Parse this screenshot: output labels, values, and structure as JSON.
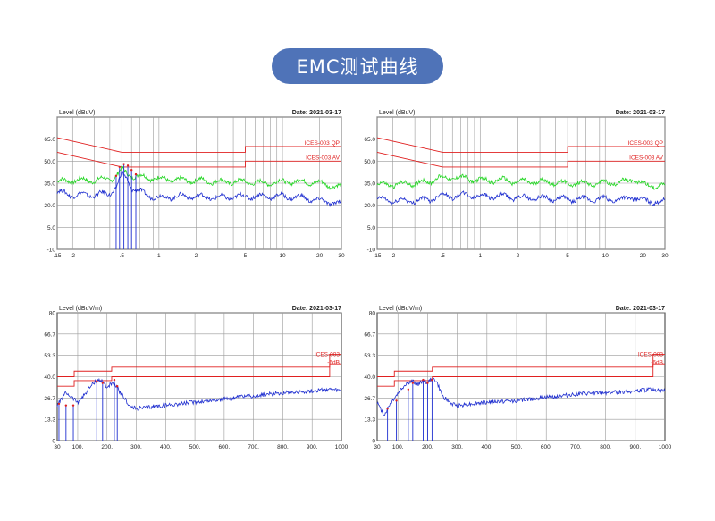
{
  "page": {
    "title": "EMC测试曲线"
  },
  "colors": {
    "limit": "#e02020",
    "qp_trace": "#23d623",
    "av_trace": "#1f2fd0",
    "header": "#4f73b8",
    "grid": "#9a9a9a"
  },
  "chart_data": [
    {
      "type": "line",
      "ylabel": "Level (dBuV)",
      "date": "Date: 2021-03-17",
      "xscale": "log",
      "xlim": [
        0.15,
        30
      ],
      "ylim": [
        -10,
        80
      ],
      "xticks": [
        0.15,
        0.2,
        0.5,
        1,
        2,
        5,
        10,
        20,
        30
      ],
      "xtick_labels": [
        ".15",
        ".2",
        ".5",
        "1",
        "2",
        "5",
        "10",
        "20",
        "30"
      ],
      "yticks": [
        -10,
        5,
        20,
        35,
        50,
        65,
        80
      ],
      "ytick_labels": [
        "-10",
        "5.0",
        "20.0",
        "35.0",
        "50.0",
        "65.0",
        ""
      ],
      "grid": true,
      "limit_labels": [
        "ICES-003 QP",
        "ICES-003 AV"
      ],
      "limits": [
        {
          "name": "ICES-003 QP",
          "x": [
            0.15,
            0.5,
            0.5,
            5,
            5,
            30
          ],
          "y": [
            66,
            56,
            56,
            56,
            60,
            60
          ]
        },
        {
          "name": "ICES-003 AV",
          "x": [
            0.15,
            0.5,
            0.5,
            5,
            5,
            30
          ],
          "y": [
            56,
            46,
            46,
            46,
            50,
            50
          ]
        }
      ],
      "series": [
        {
          "x": [
            0.15,
            0.2,
            0.3,
            0.4,
            0.45,
            0.5,
            0.55,
            0.6,
            0.8,
            1,
            1.5,
            2,
            3,
            5,
            7,
            10,
            15,
            20,
            30
          ],
          "y": [
            36,
            37,
            37,
            38,
            40,
            44,
            42,
            40,
            39,
            38,
            37,
            37,
            36,
            36,
            35,
            36,
            36,
            35,
            32
          ]
        },
        {
          "x": [
            0.15,
            0.2,
            0.3,
            0.4,
            0.45,
            0.5,
            0.55,
            0.6,
            0.8,
            1,
            1.5,
            2,
            3,
            5,
            7,
            10,
            15,
            20,
            30
          ],
          "y": [
            29,
            27,
            27,
            28,
            32,
            41,
            38,
            32,
            27,
            25,
            26,
            26,
            25,
            26,
            26,
            26,
            25,
            23,
            21
          ]
        }
      ],
      "spikes": {
        "x": [
          0.45,
          0.48,
          0.52,
          0.56,
          0.6,
          0.65
        ],
        "y": [
          40,
          46,
          48,
          47,
          44,
          41
        ]
      }
    },
    {
      "type": "line",
      "ylabel": "Level (dBuV)",
      "date": "Date: 2021-03-17",
      "xscale": "log",
      "xlim": [
        0.15,
        30
      ],
      "ylim": [
        -10,
        80
      ],
      "xticks": [
        0.15,
        0.2,
        0.5,
        1,
        2,
        5,
        10,
        20,
        30
      ],
      "xtick_labels": [
        ".15",
        ".2",
        ".5",
        "1",
        "2",
        "5",
        "10",
        "20",
        "30"
      ],
      "yticks": [
        -10,
        5,
        20,
        35,
        50,
        65,
        80
      ],
      "ytick_labels": [
        "-10",
        "5.0",
        "20.0",
        "35.0",
        "50.0",
        "65.0",
        ""
      ],
      "grid": true,
      "limit_labels": [
        "ICES-003 QP",
        "ICES-003 AV"
      ],
      "limits": [
        {
          "name": "ICES-003 QP",
          "x": [
            0.15,
            0.5,
            0.5,
            5,
            5,
            30
          ],
          "y": [
            66,
            56,
            56,
            56,
            60,
            60
          ]
        },
        {
          "name": "ICES-003 AV",
          "x": [
            0.15,
            0.5,
            0.5,
            5,
            5,
            30
          ],
          "y": [
            56,
            46,
            46,
            46,
            50,
            50
          ]
        }
      ],
      "series": [
        {
          "x": [
            0.15,
            0.2,
            0.3,
            0.4,
            0.45,
            0.5,
            0.6,
            0.8,
            1,
            1.5,
            2,
            3,
            5,
            7,
            10,
            15,
            16,
            20,
            30
          ],
          "y": [
            34,
            34,
            35,
            36,
            39,
            38,
            39,
            38,
            37,
            37,
            36,
            36,
            35,
            35,
            35,
            36,
            38,
            34,
            33
          ]
        },
        {
          "x": [
            0.15,
            0.2,
            0.3,
            0.4,
            0.45,
            0.5,
            0.6,
            0.8,
            1,
            1.5,
            2,
            3,
            5,
            7,
            10,
            15,
            16,
            20,
            30
          ],
          "y": [
            24,
            23,
            23,
            24,
            26,
            27,
            26,
            27,
            26,
            26,
            25,
            25,
            24,
            24,
            24,
            24,
            26,
            23,
            22
          ]
        }
      ],
      "spikes": {
        "x": [],
        "y": []
      }
    },
    {
      "type": "line",
      "ylabel": "Level (dBuV/m)",
      "date": "Date: 2021-03-17",
      "xscale": "linear",
      "xlim": [
        30,
        1000
      ],
      "ylim": [
        0,
        80
      ],
      "xticks": [
        30,
        100,
        200,
        300,
        400,
        500,
        600,
        700,
        800,
        900,
        1000
      ],
      "xtick_labels": [
        "30",
        "100.",
        "200.",
        "300.",
        "400.",
        "500.",
        "600.",
        "700.",
        "800.",
        "900.",
        "1000"
      ],
      "yticks": [
        0,
        13.3,
        26.7,
        40,
        53.3,
        66.7,
        80
      ],
      "ytick_labels": [
        "0",
        "13.3",
        "26.7",
        "40.0",
        "53.3",
        "66.7",
        "80"
      ],
      "grid": true,
      "limit_labels": [
        "ICES-003",
        "-6dB"
      ],
      "limits": [
        {
          "name": "ICES-003",
          "x": [
            30,
            88,
            88,
            216,
            216,
            960,
            960,
            1000
          ],
          "y": [
            40,
            40,
            43.5,
            43.5,
            46,
            46,
            54,
            54
          ]
        },
        {
          "name": "-6dB",
          "x": [
            30,
            88,
            88,
            216,
            216,
            960,
            960,
            1000
          ],
          "y": [
            34,
            34,
            37.5,
            37.5,
            40,
            40,
            48,
            48
          ]
        }
      ],
      "series": [
        {
          "x": [
            30,
            40,
            60,
            80,
            100,
            120,
            140,
            160,
            175,
            190,
            200,
            215,
            230,
            250,
            280,
            300,
            400,
            500,
            600,
            700,
            800,
            900,
            950,
            1000
          ],
          "y": [
            22,
            25,
            30,
            27,
            24,
            28,
            33,
            37,
            38,
            36,
            33,
            36,
            34,
            29,
            21,
            20,
            22,
            24,
            26,
            28,
            30,
            31,
            32,
            31
          ]
        }
      ],
      "spikes": {
        "x": [
          36,
          60,
          85,
          165,
          185,
          225,
          235
        ],
        "y": [
          23,
          22,
          22,
          37,
          36,
          38,
          34
        ]
      }
    },
    {
      "type": "line",
      "ylabel": "Level (dBuV/m)",
      "date": "Date: 2021-03-17",
      "xscale": "linear",
      "xlim": [
        30,
        1000
      ],
      "ylim": [
        0,
        80
      ],
      "xticks": [
        30,
        100,
        200,
        300,
        400,
        500,
        600,
        700,
        800,
        900,
        1000
      ],
      "xtick_labels": [
        "30",
        "100.",
        "200.",
        "300.",
        "400.",
        "500.",
        "600.",
        "700.",
        "800.",
        "900.",
        "1000"
      ],
      "yticks": [
        0,
        13.3,
        26.7,
        40,
        53.3,
        66.7,
        80
      ],
      "ytick_labels": [
        "0",
        "13.3",
        "26.7",
        "40.0",
        "53.3",
        "66.7",
        "80"
      ],
      "grid": true,
      "limit_labels": [
        "ICES-003",
        "-6dB"
      ],
      "limits": [
        {
          "name": "ICES-003",
          "x": [
            30,
            88,
            88,
            216,
            216,
            960,
            960,
            1000
          ],
          "y": [
            40,
            40,
            43.5,
            43.5,
            46,
            46,
            54,
            54
          ]
        },
        {
          "name": "-6dB",
          "x": [
            30,
            88,
            88,
            216,
            216,
            960,
            960,
            1000
          ],
          "y": [
            34,
            34,
            37.5,
            37.5,
            40,
            40,
            48,
            48
          ]
        }
      ],
      "series": [
        {
          "x": [
            30,
            40,
            55,
            70,
            90,
            110,
            130,
            150,
            170,
            185,
            200,
            215,
            230,
            250,
            280,
            300,
            400,
            500,
            600,
            700,
            800,
            900,
            950,
            1000
          ],
          "y": [
            24,
            20,
            16,
            22,
            27,
            32,
            36,
            37,
            35,
            38,
            36,
            39,
            37,
            28,
            23,
            22,
            24,
            25,
            27,
            29,
            30,
            31,
            32,
            31
          ]
        }
      ],
      "spikes": {
        "x": [
          65,
          95,
          135,
          150,
          185,
          200,
          215
        ],
        "y": [
          20,
          25,
          32,
          36,
          38,
          36,
          38
        ]
      }
    }
  ]
}
